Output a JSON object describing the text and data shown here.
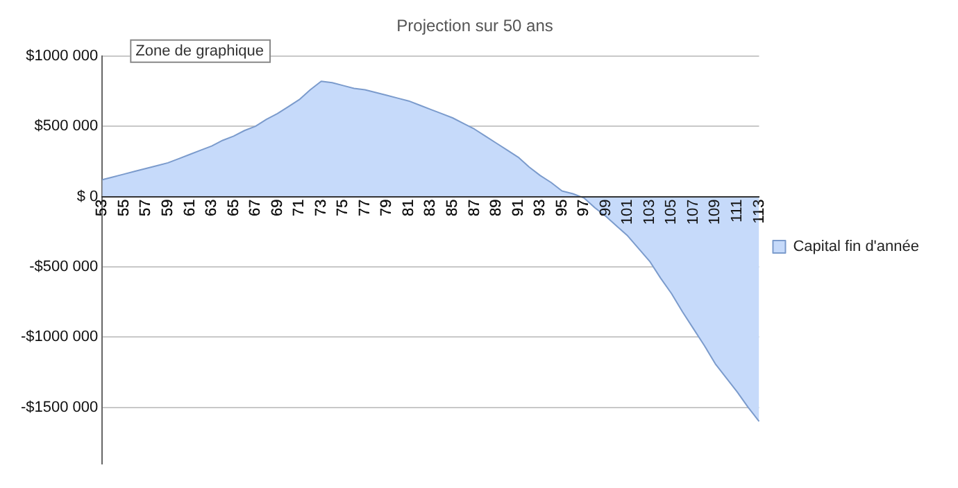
{
  "chart_data": {
    "type": "area",
    "title": "Projection sur 50 ans",
    "categories": [
      "53",
      null,
      "55",
      null,
      "57",
      null,
      "59",
      null,
      "61",
      null,
      "63",
      null,
      "65",
      null,
      "67",
      null,
      "69",
      null,
      "71",
      null,
      "73",
      null,
      "75",
      null,
      "77",
      null,
      "79",
      null,
      "81",
      null,
      "83",
      null,
      "85",
      null,
      "87",
      null,
      "89",
      null,
      "91",
      null,
      "93",
      null,
      "95",
      null,
      "97",
      null,
      "99",
      null,
      "101",
      null,
      "103",
      null,
      "105",
      null,
      "107",
      null,
      "109",
      null,
      "111",
      null,
      "113"
    ],
    "series": [
      {
        "name": "Capital fin d'année",
        "color": "#c6dafa",
        "values": [
          120000,
          140000,
          160000,
          180000,
          200000,
          220000,
          240000,
          270000,
          300000,
          330000,
          360000,
          400000,
          430000,
          470000,
          500000,
          550000,
          590000,
          640000,
          690000,
          760000,
          820000,
          810000,
          790000,
          770000,
          760000,
          740000,
          720000,
          700000,
          680000,
          650000,
          620000,
          590000,
          560000,
          520000,
          480000,
          430000,
          380000,
          330000,
          280000,
          210000,
          150000,
          100000,
          40000,
          20000,
          -10000,
          -80000,
          -140000,
          -210000,
          -280000,
          -370000,
          -460000,
          -580000,
          -690000,
          -820000,
          -940000,
          -1060000,
          -1190000,
          -1290000,
          -1390000,
          -1500000,
          -1600000
        ]
      }
    ],
    "ylim": [
      -1900000,
      1000000
    ],
    "yticks": [
      {
        "value": 1000000,
        "label": "$1000 000"
      },
      {
        "value": 500000,
        "label": "$500 000"
      },
      {
        "value": 0,
        "label": "$ 0"
      },
      {
        "value": -500000,
        "label": "-$500 000"
      },
      {
        "value": -1000000,
        "label": "-$1000 000"
      },
      {
        "value": -1500000,
        "label": "-$1500 000"
      }
    ],
    "grid": "y",
    "legend": "right",
    "annotations": [
      "Zone de graphique"
    ]
  }
}
